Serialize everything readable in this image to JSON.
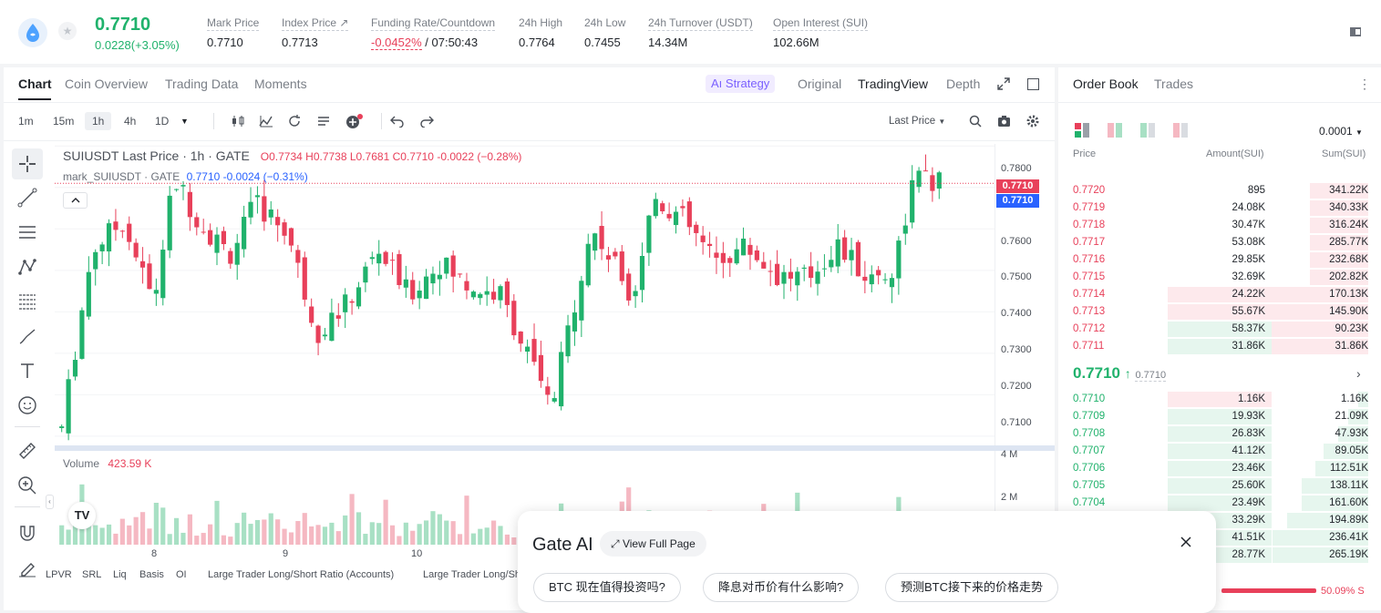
{
  "header": {
    "last_price": "0.7710",
    "change": "0.0228(+3.05%)",
    "stats": [
      {
        "label": "Mark Price",
        "value": "0.7710"
      },
      {
        "label": "Index Price ↗",
        "value": "0.7713"
      },
      {
        "label": "Funding Rate/Countdown",
        "value": "-0.0452%",
        "value2": " / 07:50:43"
      },
      {
        "label": "24h High",
        "value": "0.7764"
      },
      {
        "label": "24h Low",
        "value": "0.7455"
      },
      {
        "label": "24h Turnover (USDT)",
        "value": "14.34M"
      },
      {
        "label": "Open Interest (SUI)",
        "value": "102.66M"
      }
    ]
  },
  "chart_tabs": [
    "Chart",
    "Coin Overview",
    "Trading Data",
    "Moments"
  ],
  "view_tabs": {
    "strategy": "Aı Strategy",
    "original": "Original",
    "tradingview": "TradingView",
    "depth": "Depth"
  },
  "intervals": [
    "1m",
    "15m",
    "1h",
    "4h",
    "1D"
  ],
  "price_type": "Last Price",
  "legend": {
    "main": "SUIUSDT Last Price · 1h · GATE",
    "o": "O0.7734",
    "h": "H0.7738",
    "l": "L0.7681",
    "c": "C0.7710",
    "chg": "-0.0022 (−0.28%)",
    "mark": "mark_SUIUSDT · GATE",
    "mark_val": "0.7710",
    "mark_chg": "-0.0024 (−0.31%)",
    "volume": "Volume",
    "volume_val": "423.59 K"
  },
  "price_axis": [
    "0.7800",
    "0.7600",
    "0.7500",
    "0.7400",
    "0.7300",
    "0.7200",
    "0.7100"
  ],
  "price_tags": [
    "0.7710",
    "0.7710"
  ],
  "volume_axis": [
    "4 M",
    "2 M"
  ],
  "date_axis": [
    "8",
    "9",
    "10"
  ],
  "indicators": [
    "LPVR",
    "SRL",
    "Liq",
    "Basis",
    "OI",
    "Large Trader Long/Short Ratio (Accounts)",
    "Large Trader Long/Sh"
  ],
  "colors": {
    "up": "#20b26c",
    "down": "#e8405a",
    "accent": "#7b61ff"
  },
  "chart_data": {
    "type": "candlestick",
    "ylim": [
      0.708,
      0.7805
    ],
    "candles_count": 131,
    "last_close": 0.771
  },
  "order_book": {
    "tabs": [
      "Order Book",
      "Trades"
    ],
    "precision": "0.0001",
    "headers": [
      "Price",
      "Amount(SUI)",
      "Sum(SUI)"
    ],
    "asks": [
      {
        "price": "0.7720",
        "amount": "895",
        "sum": "341.22K",
        "depth": 0.3
      },
      {
        "price": "0.7719",
        "amount": "24.08K",
        "sum": "340.33K",
        "depth": 0.3
      },
      {
        "price": "0.7718",
        "amount": "30.47K",
        "sum": "316.24K",
        "depth": 0.3
      },
      {
        "price": "0.7717",
        "amount": "53.08K",
        "sum": "285.77K",
        "depth": 0.3
      },
      {
        "price": "0.7716",
        "amount": "29.85K",
        "sum": "232.68K",
        "depth": 0.3
      },
      {
        "price": "0.7715",
        "amount": "32.69K",
        "sum": "202.82K",
        "depth": 0.3
      },
      {
        "price": "0.7714",
        "amount": "24.22K",
        "sum": "170.13K",
        "depth": 0.5
      },
      {
        "price": "0.7713",
        "amount": "55.67K",
        "sum": "145.90K",
        "depth": 0.5
      },
      {
        "price": "0.7712",
        "amount": "58.37K",
        "sum": "90.23K",
        "depth": 0.5
      },
      {
        "price": "0.7711",
        "amount": "31.86K",
        "sum": "31.86K",
        "depth": 0.5
      }
    ],
    "mid_price": "0.7710",
    "mid_arrow": "↑",
    "mid_mark": "0.7710",
    "bids": [
      {
        "price": "0.7710",
        "amount": "1.16K",
        "sum": "1.16K",
        "depth": 0.05
      },
      {
        "price": "0.7709",
        "amount": "19.93K",
        "sum": "21.09K",
        "depth": 0.1
      },
      {
        "price": "0.7708",
        "amount": "26.83K",
        "sum": "47.93K",
        "depth": 0.15
      },
      {
        "price": "0.7707",
        "amount": "41.12K",
        "sum": "89.05K",
        "depth": 0.22
      },
      {
        "price": "0.7706",
        "amount": "23.46K",
        "sum": "112.51K",
        "depth": 0.26
      },
      {
        "price": "0.7705",
        "amount": "25.60K",
        "sum": "138.11K",
        "depth": 0.33
      },
      {
        "price": "0.7704",
        "amount": "23.49K",
        "sum": "161.60K",
        "depth": 0.33
      },
      {
        "price": "",
        "amount": "33.29K",
        "sum": "194.89K",
        "depth": 0.4
      },
      {
        "price": "",
        "amount": "41.51K",
        "sum": "236.41K",
        "depth": 0.47
      },
      {
        "price": "",
        "amount": "28.77K",
        "sum": "265.19K",
        "depth": 0.47
      }
    ],
    "ratio_label": "50.09% S"
  },
  "ai": {
    "title": "Gate AI",
    "view_full": "View Full Page",
    "chips": [
      "BTC 现在值得投资吗?",
      "降息对币价有什么影响?",
      "预测BTC接下来的价格走势"
    ]
  }
}
